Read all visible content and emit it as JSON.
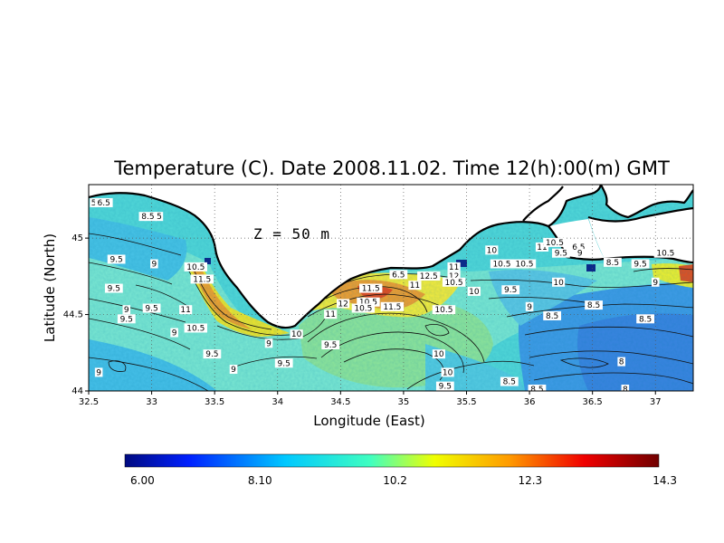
{
  "chart_data": {
    "type": "heatmap",
    "title": "Temperature (C). Date 2008.11.02. Time 12(h):00(m) GMT",
    "xlabel": "Longitude (East)",
    "ylabel": "Latitude (North)",
    "depth_label": "Z = 50 m",
    "xlim": [
      32.5,
      37.3
    ],
    "ylim": [
      44.0,
      45.35
    ],
    "x_ticks": [
      32.5,
      33,
      33.5,
      34,
      34.5,
      35,
      35.5,
      36,
      36.5,
      37
    ],
    "x_tick_labels": [
      "32.5",
      "33",
      "33.5",
      "34",
      "34.5",
      "35",
      "35.5",
      "36",
      "36.5",
      "37"
    ],
    "y_ticks": [
      44,
      44.5,
      45
    ],
    "y_tick_labels": [
      "44",
      "44.5",
      "45"
    ],
    "grid": true,
    "colorbar": {
      "min": 6.0,
      "max": 14.3,
      "tick_values": [
        6.0,
        8.1,
        10.2,
        12.3,
        14.3
      ],
      "tick_labels": [
        "6.00",
        "8.10",
        "10.2",
        "12.3",
        "14.3"
      ]
    },
    "contour_labels": [
      {
        "lon": 32.54,
        "lat": 45.22,
        "text": "5"
      },
      {
        "lon": 32.62,
        "lat": 45.22,
        "text": "6.5"
      },
      {
        "lon": 32.97,
        "lat": 45.13,
        "text": "8.5"
      },
      {
        "lon": 33.06,
        "lat": 45.13,
        "text": "5"
      },
      {
        "lon": 32.72,
        "lat": 44.85,
        "text": "9.5"
      },
      {
        "lon": 33.02,
        "lat": 44.82,
        "text": "9"
      },
      {
        "lon": 33.35,
        "lat": 44.8,
        "text": "10.5"
      },
      {
        "lon": 33.4,
        "lat": 44.72,
        "text": "11.5"
      },
      {
        "lon": 32.7,
        "lat": 44.66,
        "text": "9.5"
      },
      {
        "lon": 32.8,
        "lat": 44.52,
        "text": "9"
      },
      {
        "lon": 32.8,
        "lat": 44.46,
        "text": "9.5"
      },
      {
        "lon": 33.0,
        "lat": 44.53,
        "text": "9.5"
      },
      {
        "lon": 33.27,
        "lat": 44.52,
        "text": "11"
      },
      {
        "lon": 33.35,
        "lat": 44.4,
        "text": "10.5"
      },
      {
        "lon": 33.18,
        "lat": 44.37,
        "text": "9"
      },
      {
        "lon": 33.48,
        "lat": 44.23,
        "text": "9.5"
      },
      {
        "lon": 33.65,
        "lat": 44.13,
        "text": "9"
      },
      {
        "lon": 32.58,
        "lat": 44.11,
        "text": "9"
      },
      {
        "lon": 33.93,
        "lat": 44.3,
        "text": "9"
      },
      {
        "lon": 34.05,
        "lat": 44.17,
        "text": "9.5"
      },
      {
        "lon": 34.15,
        "lat": 44.36,
        "text": "10"
      },
      {
        "lon": 34.42,
        "lat": 44.49,
        "text": "11"
      },
      {
        "lon": 34.52,
        "lat": 44.56,
        "text": "12"
      },
      {
        "lon": 34.42,
        "lat": 44.29,
        "text": "9.5"
      },
      {
        "lon": 34.96,
        "lat": 44.75,
        "text": "6.5"
      },
      {
        "lon": 34.74,
        "lat": 44.66,
        "text": "11.5"
      },
      {
        "lon": 34.72,
        "lat": 44.57,
        "text": "10.5"
      },
      {
        "lon": 34.68,
        "lat": 44.53,
        "text": "10.5"
      },
      {
        "lon": 34.91,
        "lat": 44.54,
        "text": "11.5"
      },
      {
        "lon": 35.09,
        "lat": 44.68,
        "text": "11"
      },
      {
        "lon": 35.2,
        "lat": 44.74,
        "text": "12.5"
      },
      {
        "lon": 35.4,
        "lat": 44.8,
        "text": "11"
      },
      {
        "lon": 35.4,
        "lat": 44.74,
        "text": "12"
      },
      {
        "lon": 35.4,
        "lat": 44.7,
        "text": "10.5"
      },
      {
        "lon": 35.32,
        "lat": 44.52,
        "text": "10.5"
      },
      {
        "lon": 35.56,
        "lat": 44.64,
        "text": "10"
      },
      {
        "lon": 35.78,
        "lat": 44.82,
        "text": "10.5"
      },
      {
        "lon": 35.7,
        "lat": 44.91,
        "text": "10"
      },
      {
        "lon": 35.96,
        "lat": 44.82,
        "text": "10.5"
      },
      {
        "lon": 36.1,
        "lat": 44.93,
        "text": "11"
      },
      {
        "lon": 36.2,
        "lat": 44.96,
        "text": "10.5"
      },
      {
        "lon": 36.25,
        "lat": 44.89,
        "text": "9.5"
      },
      {
        "lon": 36.39,
        "lat": 44.93,
        "text": "6.5"
      },
      {
        "lon": 36.4,
        "lat": 44.89,
        "text": "9"
      },
      {
        "lon": 36.66,
        "lat": 44.83,
        "text": "8.5"
      },
      {
        "lon": 36.88,
        "lat": 44.82,
        "text": "9.5"
      },
      {
        "lon": 37.08,
        "lat": 44.89,
        "text": "10.5"
      },
      {
        "lon": 37.0,
        "lat": 44.7,
        "text": "9"
      },
      {
        "lon": 35.85,
        "lat": 44.65,
        "text": "9.5"
      },
      {
        "lon": 36.23,
        "lat": 44.7,
        "text": "10"
      },
      {
        "lon": 36.0,
        "lat": 44.54,
        "text": "9"
      },
      {
        "lon": 36.18,
        "lat": 44.48,
        "text": "8.5"
      },
      {
        "lon": 36.51,
        "lat": 44.55,
        "text": "8.5"
      },
      {
        "lon": 36.92,
        "lat": 44.46,
        "text": "8.5"
      },
      {
        "lon": 35.28,
        "lat": 44.23,
        "text": "10"
      },
      {
        "lon": 35.35,
        "lat": 44.11,
        "text": "10"
      },
      {
        "lon": 35.33,
        "lat": 44.02,
        "text": "9.5"
      },
      {
        "lon": 35.84,
        "lat": 44.05,
        "text": "8.5"
      },
      {
        "lon": 36.06,
        "lat": 44.0,
        "text": "8.5"
      },
      {
        "lon": 36.73,
        "lat": 44.18,
        "text": "8"
      },
      {
        "lon": 36.76,
        "lat": 44.0,
        "text": "8"
      }
    ]
  }
}
